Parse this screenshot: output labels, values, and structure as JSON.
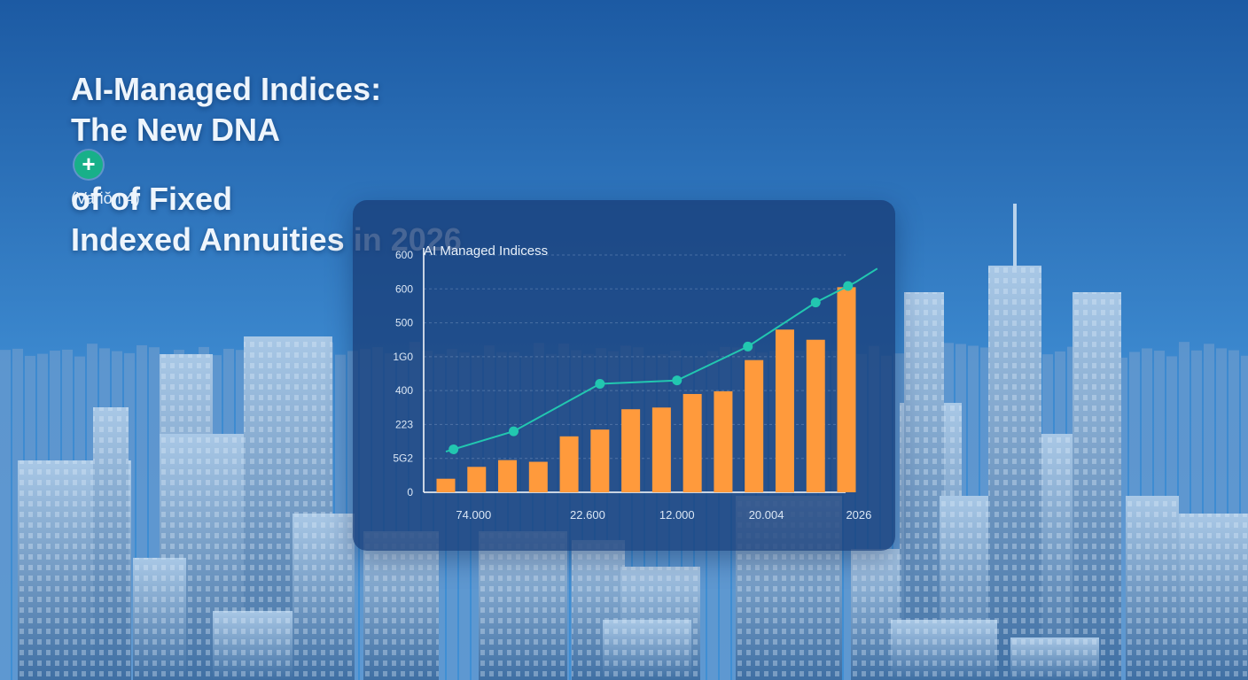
{
  "headline": {
    "line1": "AI-Managed Indices:",
    "line2a": "The New DNA",
    "badge_glyph": "+",
    "line2b": "of of Fixed",
    "line3": "Indexed Annuities in 2026",
    "version": "(Variŏn 4)"
  },
  "colors": {
    "sky_top": "#1c5aa3",
    "sky_bottom": "#3f8fd4",
    "panel": "#183e78",
    "bar": "#ff9a3c",
    "line": "#22c7b0",
    "badge": "#18b089",
    "text": "#eef5fc"
  },
  "chart_data": {
    "type": "bar",
    "title": "AI Managed Indicess",
    "y_tick_labels": [
      "0",
      "5G2",
      "223",
      "400",
      "1G0",
      "500",
      "600",
      "600"
    ],
    "x_tick_labels": [
      "74.000",
      "22.600",
      "12.000",
      "20.004",
      "2026"
    ],
    "ylim": [
      0,
      7
    ],
    "grid": true,
    "series": [
      {
        "kind": "bar",
        "values": [
          0.4,
          0.75,
          0.95,
          0.9,
          1.65,
          1.85,
          2.45,
          2.5,
          2.9,
          2.98,
          3.9,
          4.8,
          4.5,
          6.05
        ]
      },
      {
        "kind": "line",
        "x": [
          0,
          2.2,
          5,
          7.5,
          9.8,
          12,
          13.3,
          14
        ],
        "y": [
          1.2,
          1.8,
          3.2,
          3.3,
          4.3,
          5.6,
          6.2,
          6.6
        ],
        "markers": [
          0.25,
          2.2,
          5,
          7.5,
          9.8,
          12,
          13.05
        ]
      }
    ]
  }
}
